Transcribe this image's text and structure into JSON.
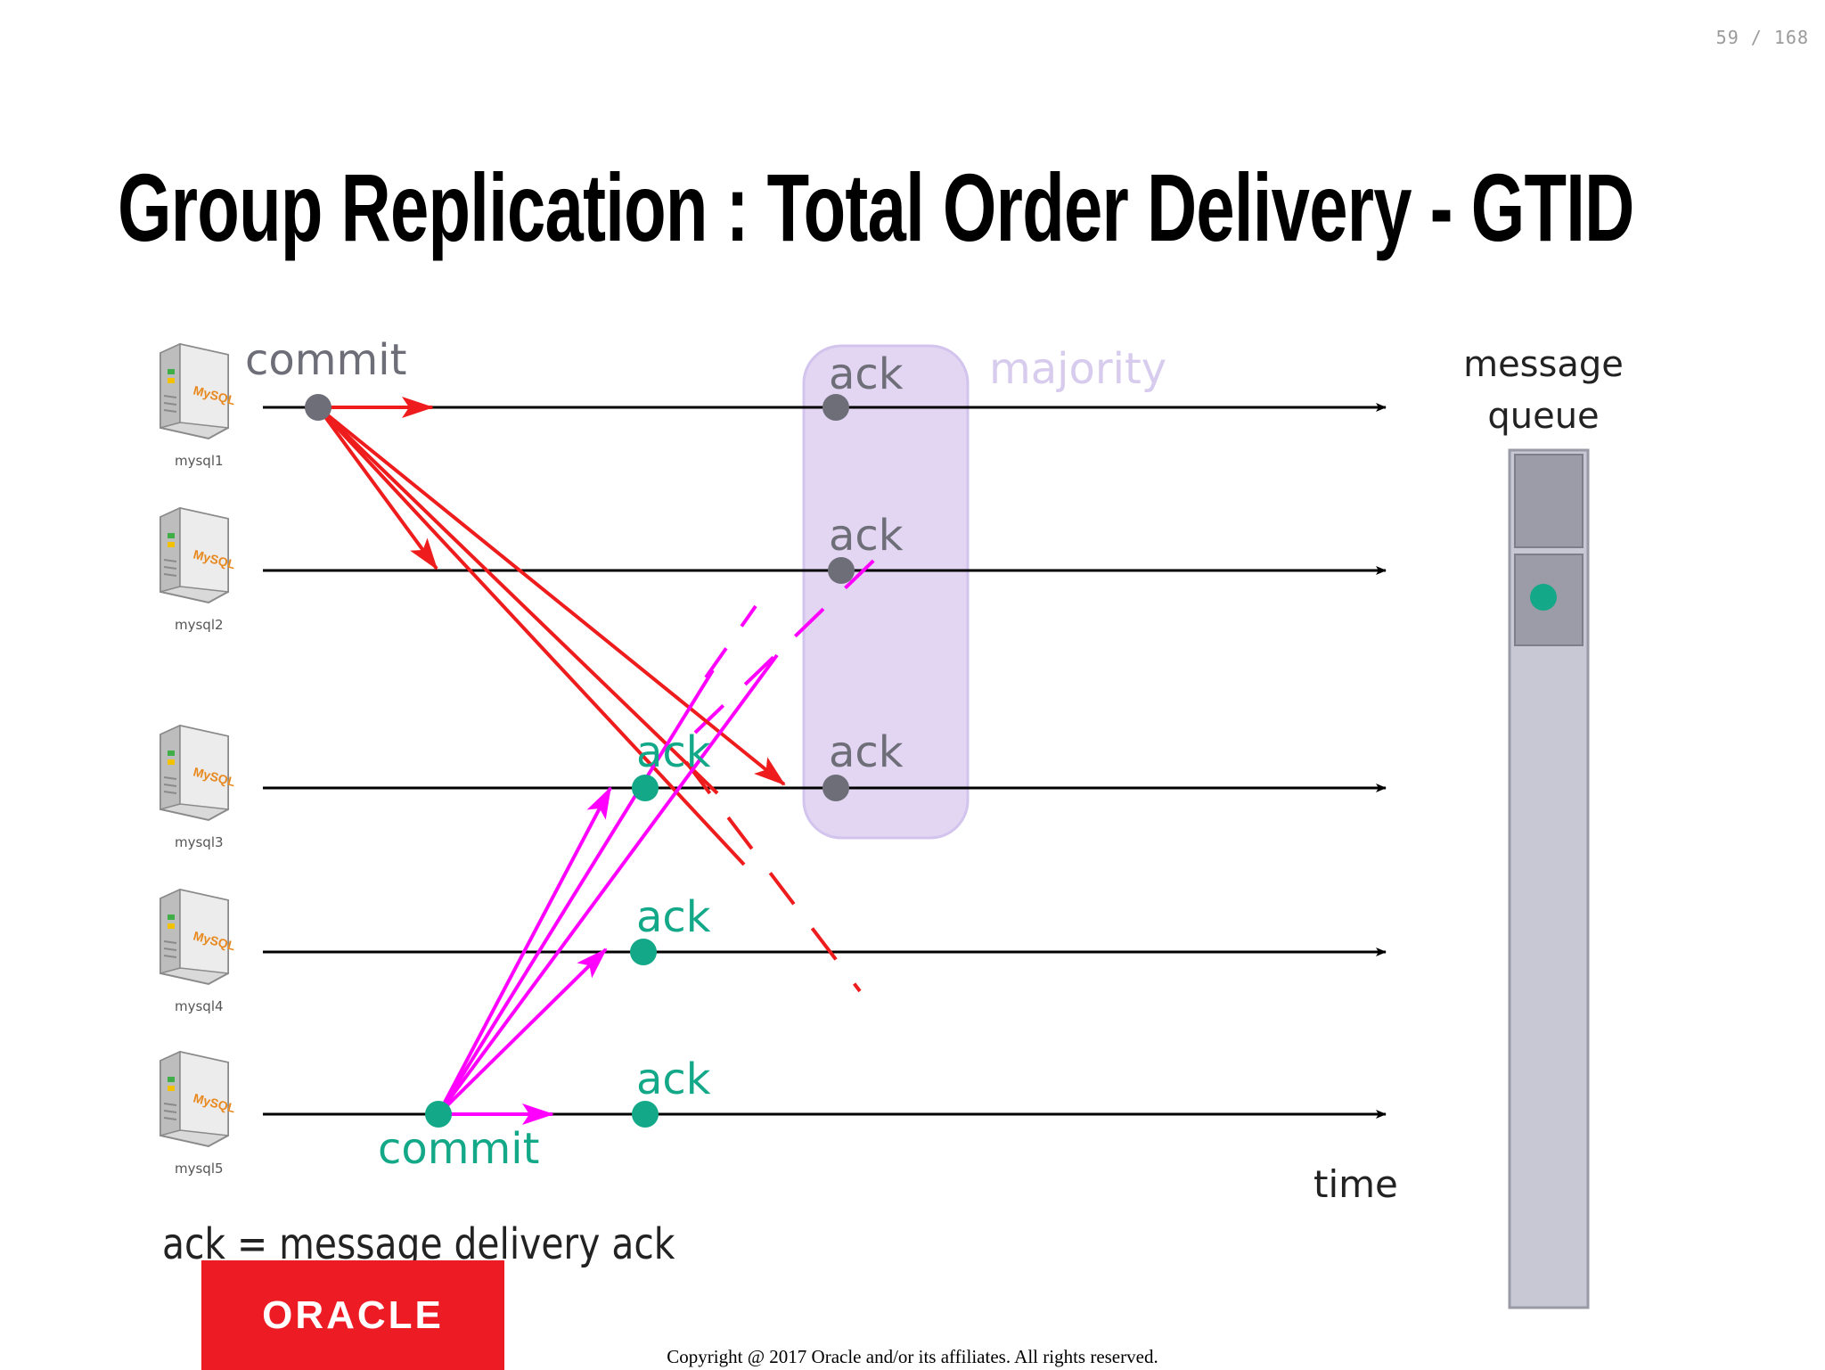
{
  "page_counter": "59 / 168",
  "title": "Group Replication : Total Order Delivery - GTID",
  "servers": [
    {
      "id": "mysql1",
      "label": "mysql1",
      "logo": "MySQL"
    },
    {
      "id": "mysql2",
      "label": "mysql2",
      "logo": "MySQL"
    },
    {
      "id": "mysql3",
      "label": "mysql3",
      "logo": "MySQL"
    },
    {
      "id": "mysql4",
      "label": "mysql4",
      "logo": "MySQL"
    },
    {
      "id": "mysql5",
      "label": "mysql5",
      "logo": "MySQL"
    }
  ],
  "labels": {
    "commit_top": "commit",
    "commit_bottom": "commit",
    "ack": "ack",
    "majority": "majority",
    "message_queue_line1": "message",
    "message_queue_line2": "queue",
    "time": "time",
    "legend": "ack = message delivery ack"
  },
  "colors": {
    "red": "#ee1c1c",
    "magenta": "#ff00ff",
    "teal": "#13a888",
    "grey_dot": "#6e6e78",
    "majority_fill": "#e2d6f3",
    "queue_fill": "#c8c8d4"
  },
  "footer": {
    "logo_text": "ORACLE",
    "copyright": "Copyright @ 2017 Oracle and/or its affiliates. All rights reserved."
  }
}
